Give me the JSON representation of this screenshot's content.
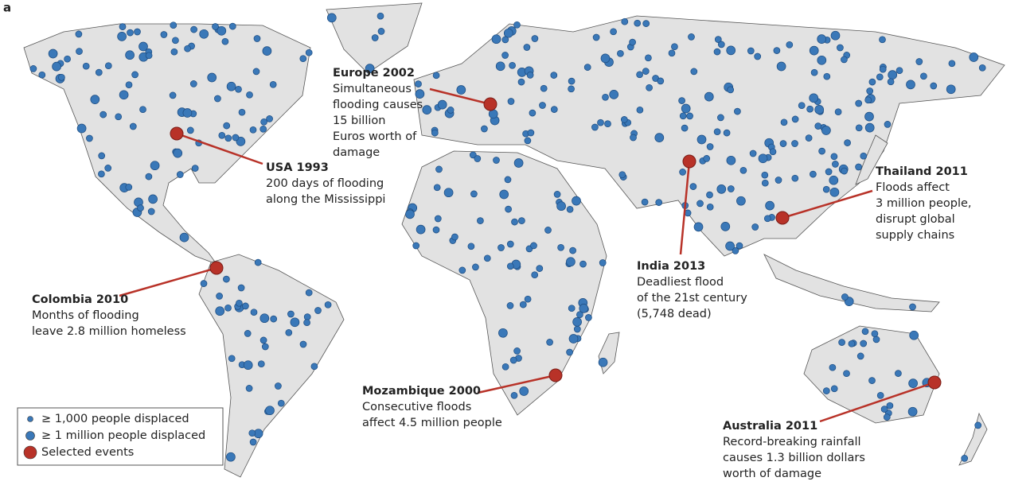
{
  "panel_label": "a",
  "events": [
    {
      "title": "Europe 2002",
      "lines": [
        "Simultaneous",
        "flooding causes",
        "15 billion",
        "Euros worth of",
        "damage"
      ]
    },
    {
      "title": "USA 1993",
      "lines": [
        "200 days of flooding",
        "along the Mississippi"
      ]
    },
    {
      "title": "Thailand 2011",
      "lines": [
        "Floods affect",
        "3 million people,",
        "disrupt global",
        "supply chains"
      ]
    },
    {
      "title": "India 2013",
      "lines": [
        "Deadliest flood",
        "of the 21st century",
        "(5,748 dead)"
      ]
    },
    {
      "title": "Colombia 2010",
      "lines": [
        "Months of flooding",
        "leave 2.8 million homeless"
      ]
    },
    {
      "title": "Mozambique 2000",
      "lines": [
        "Consecutive floods",
        "affect 4.5 million people"
      ]
    },
    {
      "title": "Australia 2011",
      "lines": [
        "Record-breaking rainfall",
        "causes 1.3 billion dollars",
        "worth of damage"
      ]
    }
  ],
  "legend": [
    "≥ 1,000 people displaced",
    "≥ 1 million people displaced",
    "Selected events"
  ]
}
